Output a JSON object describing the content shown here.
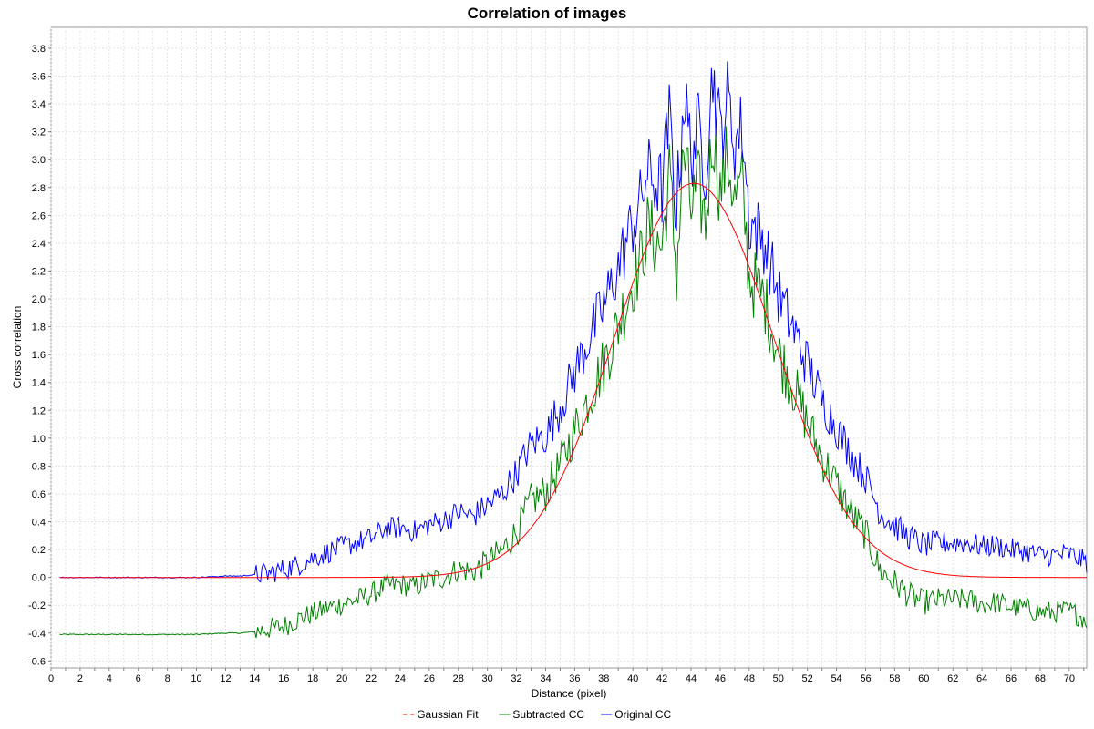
{
  "chart_data": {
    "type": "line",
    "title": "Correlation of images",
    "xlabel": "Distance (pixel)",
    "ylabel": "Cross correlation",
    "xlim": [
      0,
      71.2
    ],
    "ylim": [
      -0.65,
      3.95
    ],
    "x_ticks": [
      0,
      2,
      4,
      6,
      8,
      10,
      12,
      14,
      16,
      18,
      20,
      22,
      24,
      26,
      28,
      30,
      32,
      34,
      36,
      38,
      40,
      42,
      44,
      46,
      48,
      50,
      52,
      54,
      56,
      58,
      60,
      62,
      64,
      66,
      68,
      70
    ],
    "x_minor_step": 1,
    "y_ticks": [
      -0.6,
      -0.4,
      -0.2,
      0.0,
      0.2,
      0.4,
      0.6,
      0.8,
      1.0,
      1.2,
      1.4,
      1.6,
      1.8,
      2.0,
      2.2,
      2.4,
      2.6,
      2.8,
      3.0,
      3.2,
      3.4,
      3.6,
      3.8
    ],
    "grid": true,
    "legend_position": "bottom-center",
    "series": [
      {
        "name": "Gaussian Fit",
        "color": "#ff0000",
        "style": "line",
        "model": "gaussian",
        "x_range": [
          0.6,
          71.2
        ],
        "amplitude": 2.83,
        "center": 44.2,
        "sigma": 5.5,
        "offset": 0.0
      },
      {
        "name": "Subtracted CC",
        "color": "#008000",
        "x": [
          0.6,
          4,
          8,
          10,
          12,
          13,
          14,
          15,
          16,
          17,
          18,
          19,
          20,
          21,
          22,
          23,
          24,
          25,
          26,
          27,
          28,
          29,
          30,
          31,
          32,
          33,
          34,
          35,
          36,
          37,
          38,
          39,
          40,
          40.5,
          41,
          41.5,
          42,
          42.5,
          43,
          43.5,
          44,
          44.5,
          45,
          45.5,
          46,
          46.5,
          47,
          47.5,
          48,
          49,
          50,
          51,
          52,
          53,
          54,
          55,
          56,
          57,
          58,
          59,
          60,
          61,
          62,
          63,
          64,
          65,
          66,
          67,
          68,
          69,
          70,
          71.2
        ],
        "values": [
          -0.41,
          -0.41,
          -0.41,
          -0.41,
          -0.4,
          -0.4,
          -0.39,
          -0.37,
          -0.35,
          -0.3,
          -0.26,
          -0.22,
          -0.19,
          -0.16,
          -0.12,
          -0.06,
          -0.05,
          -0.07,
          -0.02,
          0.0,
          0.06,
          0.04,
          0.11,
          0.19,
          0.33,
          0.55,
          0.61,
          0.8,
          1.06,
          1.3,
          1.53,
          1.81,
          2.13,
          2.26,
          2.5,
          2.42,
          2.37,
          2.89,
          2.2,
          3.06,
          2.64,
          2.79,
          2.55,
          3.21,
          2.76,
          3.03,
          2.7,
          2.83,
          2.15,
          2.01,
          1.61,
          1.38,
          1.11,
          0.86,
          0.67,
          0.46,
          0.31,
          0.05,
          -0.04,
          -0.13,
          -0.18,
          -0.16,
          -0.16,
          -0.16,
          -0.19,
          -0.18,
          -0.21,
          -0.22,
          -0.25,
          -0.25,
          -0.24,
          -0.3
        ]
      },
      {
        "name": "Original CC",
        "color": "#0000ff",
        "x": [
          0.6,
          4,
          8,
          10,
          12,
          13,
          14,
          15,
          16,
          17,
          18,
          19,
          20,
          21,
          22,
          23,
          24,
          25,
          26,
          27,
          28,
          29,
          30,
          31,
          32,
          33,
          34,
          35,
          36,
          37,
          38,
          39,
          40,
          40.5,
          41,
          41.5,
          42,
          42.5,
          43,
          43.5,
          44,
          44.5,
          45,
          45.5,
          46,
          46.5,
          47,
          47.5,
          48,
          49,
          50,
          51,
          52,
          53,
          54,
          55,
          56,
          57,
          58,
          59,
          60,
          61,
          62,
          63,
          64,
          65,
          66,
          67,
          68,
          69,
          70,
          71.2
        ],
        "values": [
          0.0,
          0.0,
          0.0,
          0.0,
          0.01,
          0.01,
          0.02,
          0.03,
          0.06,
          0.09,
          0.14,
          0.18,
          0.22,
          0.25,
          0.28,
          0.35,
          0.36,
          0.33,
          0.38,
          0.41,
          0.47,
          0.44,
          0.52,
          0.6,
          0.75,
          0.96,
          1.02,
          1.22,
          1.48,
          1.72,
          1.95,
          2.23,
          2.55,
          2.68,
          2.91,
          2.84,
          2.79,
          3.3,
          2.62,
          3.47,
          3.06,
          3.21,
          2.97,
          3.63,
          3.18,
          3.45,
          3.11,
          3.25,
          2.57,
          2.42,
          2.03,
          1.79,
          1.53,
          1.27,
          1.08,
          0.88,
          0.72,
          0.47,
          0.37,
          0.29,
          0.23,
          0.25,
          0.25,
          0.25,
          0.22,
          0.23,
          0.2,
          0.19,
          0.16,
          0.16,
          0.17,
          0.11
        ]
      }
    ]
  }
}
